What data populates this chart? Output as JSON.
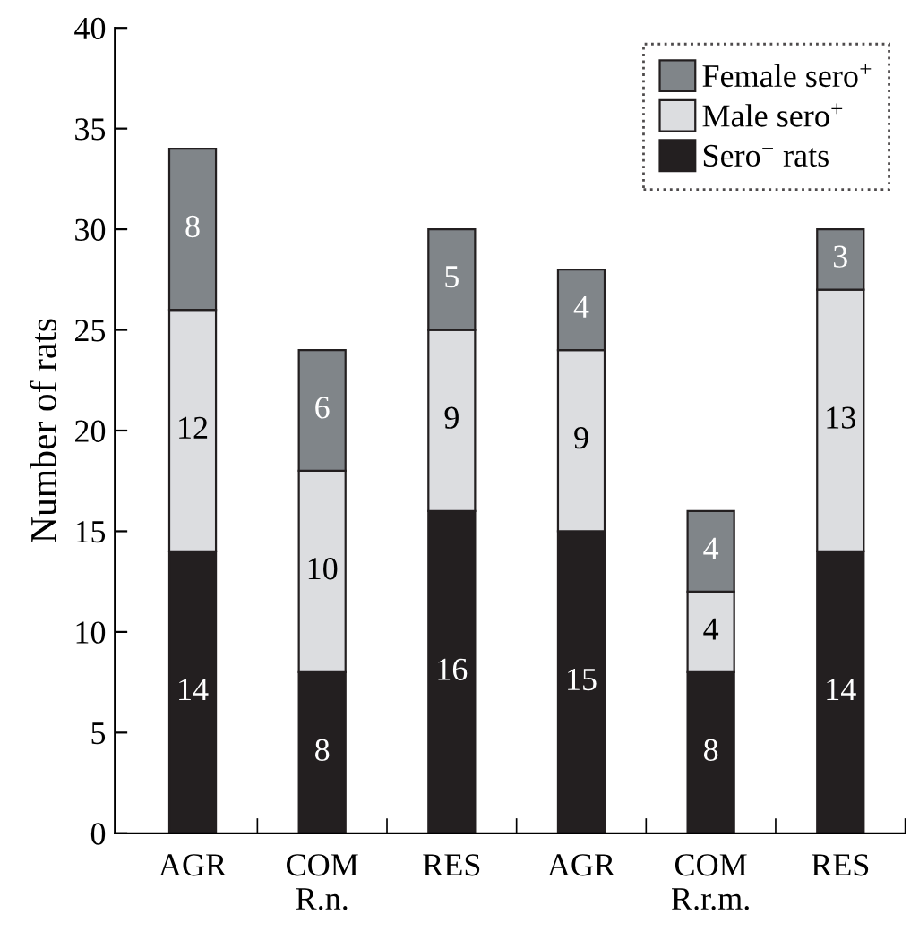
{
  "chart_data": {
    "type": "bar",
    "stacked": true,
    "ylabel": "Number of rats",
    "categories": [
      "AGR",
      "COM\nR.n.",
      "RES",
      "AGR",
      "COM\nR.r.m.",
      "RES"
    ],
    "series": [
      {
        "name": "Sero$^{−}$ rats",
        "color": "#231f20",
        "values": [
          14,
          8,
          16,
          15,
          8,
          14
        ]
      },
      {
        "name": "Male sero$^{+}$",
        "color": "#dcdde0",
        "values": [
          12,
          10,
          9,
          9,
          4,
          13
        ]
      },
      {
        "name": "Female sero$^{+}$",
        "color": "#808589",
        "values": [
          8,
          6,
          5,
          4,
          4,
          3
        ]
      }
    ],
    "ylim": [
      0,
      40
    ],
    "yticks": [
      0,
      5,
      10,
      15,
      20,
      25,
      30,
      35,
      40
    ],
    "grid": false,
    "legend": "top right",
    "data_labels": true
  }
}
